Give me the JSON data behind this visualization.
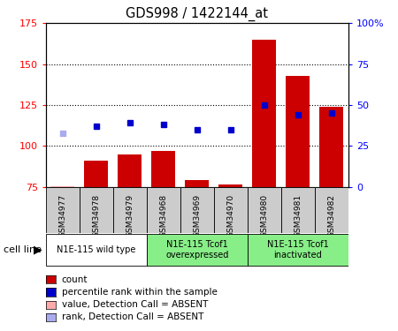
{
  "title": "GDS998 / 1422144_at",
  "samples": [
    "GSM34977",
    "GSM34978",
    "GSM34979",
    "GSM34968",
    "GSM34969",
    "GSM34970",
    "GSM34980",
    "GSM34981",
    "GSM34982"
  ],
  "count_values": [
    75.5,
    91,
    95,
    97,
    79,
    76.5,
    165,
    143,
    124
  ],
  "rank_values": [
    33,
    37,
    39,
    38,
    35,
    35,
    50,
    44,
    45
  ],
  "absent_value_idx": [
    0
  ],
  "absent_rank_idx": [
    0
  ],
  "ylim_left": [
    75,
    175
  ],
  "ylim_right": [
    0,
    100
  ],
  "yticks_left": [
    75,
    100,
    125,
    150,
    175
  ],
  "yticks_right": [
    0,
    25,
    50,
    75,
    100
  ],
  "ytick_labels_right": [
    "0",
    "25",
    "50",
    "75",
    "100%"
  ],
  "cell_line_groups": [
    {
      "label": "N1E-115 wild type",
      "start": 0,
      "end": 3,
      "color": "#ffffff"
    },
    {
      "label": "N1E-115 Tcof1\noverexpressed",
      "start": 3,
      "end": 6,
      "color": "#88ee88"
    },
    {
      "label": "N1E-115 Tcof1\ninactivated",
      "start": 6,
      "end": 9,
      "color": "#88ee88"
    }
  ],
  "bar_color": "#cc0000",
  "rank_color": "#0000cc",
  "absent_value_color": "#ffaaaa",
  "absent_rank_color": "#aaaaee",
  "cell_line_label": "cell line",
  "grid_color": "#000000",
  "legend_items": [
    {
      "label": "count",
      "color": "#cc0000"
    },
    {
      "label": "percentile rank within the sample",
      "color": "#0000cc"
    },
    {
      "label": "value, Detection Call = ABSENT",
      "color": "#ffaaaa"
    },
    {
      "label": "rank, Detection Call = ABSENT",
      "color": "#aaaaee"
    }
  ]
}
